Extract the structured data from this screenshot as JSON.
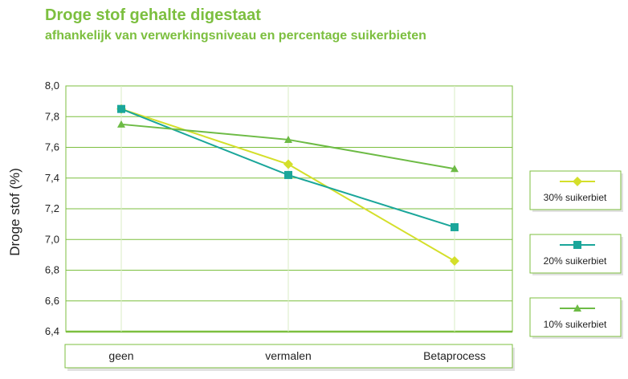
{
  "chart_data": {
    "type": "line",
    "title": "Droge stof gehalte digestaat",
    "subtitle": "afhankelijk van verwerkingsniveau en percentage suikerbieten",
    "ylabel": "Droge stof (%)",
    "xlabel": "",
    "categories": [
      "geen",
      "vermalen",
      "Betaprocess"
    ],
    "ylim": [
      6.4,
      8.0
    ],
    "yticks": [
      "6,4",
      "6,6",
      "6,8",
      "7,0",
      "7,2",
      "7,4",
      "7,6",
      "7,8",
      "8,0"
    ],
    "grid": true,
    "legend_position": "right",
    "series": [
      {
        "name": "30% suikerbiet",
        "values": [
          7.85,
          7.49,
          6.86
        ],
        "color": "#d4df2a",
        "marker": "diamond"
      },
      {
        "name": "20% suikerbiet",
        "values": [
          7.85,
          7.42,
          7.08
        ],
        "color": "#1aa69a",
        "marker": "square"
      },
      {
        "name": "10% suikerbiet",
        "values": [
          7.75,
          7.65,
          7.46
        ],
        "color": "#6dbb45",
        "marker": "triangle"
      }
    ]
  }
}
